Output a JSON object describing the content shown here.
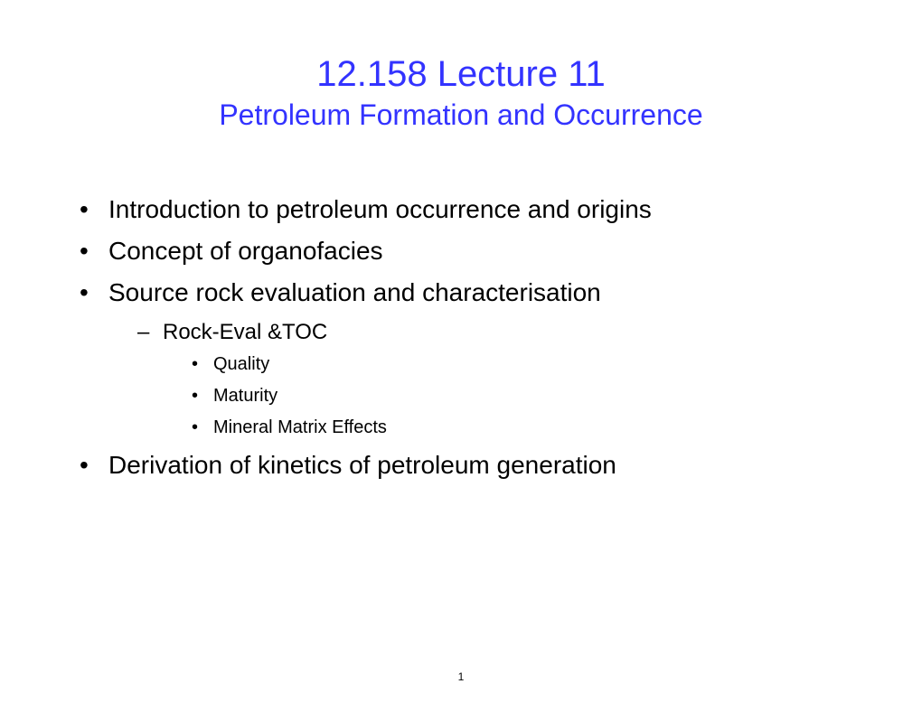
{
  "title": {
    "main": "12.158 Lecture 11",
    "sub": "Petroleum Formation and Occurrence",
    "color": "#3333ff",
    "main_fontsize": 40,
    "sub_fontsize": 32
  },
  "bullets": {
    "level1": [
      "Introduction to petroleum occurrence and origins",
      "Concept of organofacies",
      "Source rock evaluation and characterisation",
      "Derivation of kinetics of petroleum generation"
    ],
    "level2": [
      "Rock-Eval &TOC"
    ],
    "level3": [
      "Quality",
      "Maturity",
      "Mineral Matrix Effects"
    ],
    "level1_fontsize": 28,
    "level2_fontsize": 24,
    "level3_fontsize": 20,
    "text_color": "#000000"
  },
  "page_number": "1",
  "background_color": "#ffffff"
}
